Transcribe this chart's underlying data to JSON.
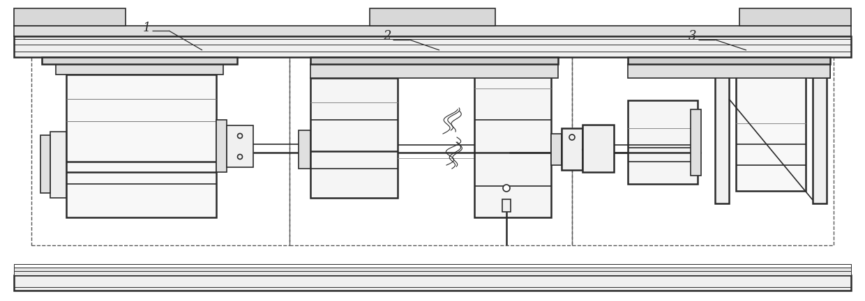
{
  "fig_width": 12.4,
  "fig_height": 4.32,
  "dpi": 100,
  "bg_color": "#ffffff",
  "lc": "#2a2a2a",
  "dc": "#555555",
  "lw_thick": 1.8,
  "lw_med": 1.2,
  "lw_thin": 0.7
}
